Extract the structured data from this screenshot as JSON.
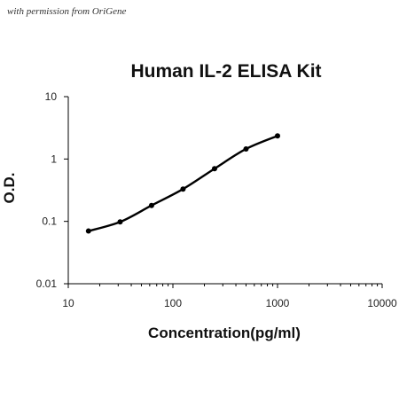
{
  "watermark": "with permission from OriGene",
  "chart_data": {
    "type": "scatter",
    "title": "Human IL-2 ELISA Kit",
    "xlabel": "Concentration(pg/ml)",
    "ylabel": "O.D.",
    "xscale": "log",
    "yscale": "log",
    "xlim": [
      10,
      10000
    ],
    "ylim": [
      0.01,
      10
    ],
    "xticks": [
      "10",
      "100",
      "1000",
      "10000"
    ],
    "yticks": [
      "0.01",
      "0.1",
      "1",
      "10"
    ],
    "grid": false,
    "legend": "none",
    "series": [
      {
        "x": [
          15.6,
          31.3,
          62.5,
          125,
          250,
          500,
          1000
        ],
        "y": [
          0.07,
          0.098,
          0.18,
          0.33,
          0.7,
          1.45,
          2.35
        ],
        "marker": "circle",
        "line": "smooth",
        "color": "#000000"
      }
    ]
  }
}
